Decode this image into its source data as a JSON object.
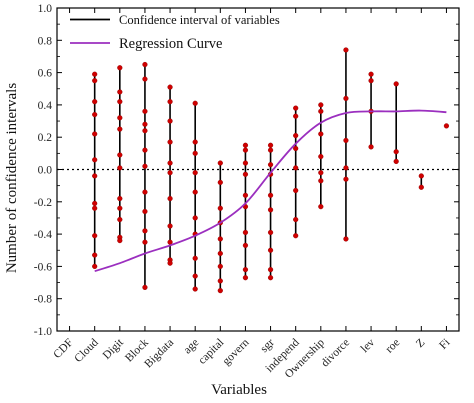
{
  "chart_data": {
    "type": "scatter",
    "title": "",
    "xlabel": "Variables",
    "ylabel": "Number of confidence intervals",
    "ylim": [
      -1.0,
      1.0
    ],
    "yticks": [
      "-1.0",
      "-0.8",
      "-0.6",
      "-0.4",
      "-0.2",
      "0.0",
      "0.2",
      "0.4",
      "0.6",
      "0.8",
      "1.0"
    ],
    "categories": [
      "CDF",
      "Cloud",
      "Digit",
      "Block",
      "Bigdata",
      "age",
      "capital",
      "govern",
      "sgr",
      "independ",
      "Ownership",
      "divorce",
      "lev",
      "roe",
      "Z",
      "Fi"
    ],
    "grid": false,
    "zero_reference_line": "dotted",
    "legend": {
      "placement": "top-left",
      "entries": [
        "Confidence interval of variables",
        "Regression Curve"
      ]
    },
    "series": [
      {
        "name": "Confidence interval of variables",
        "intervals": [
          {
            "category": "CDF",
            "low": null,
            "high": null,
            "points": []
          },
          {
            "category": "Cloud",
            "low": -0.6,
            "high": 0.59,
            "points": [
              0.59,
              0.55,
              0.42,
              0.34,
              0.22,
              0.06,
              -0.04,
              -0.21,
              -0.24,
              -0.41,
              -0.53,
              -0.6
            ]
          },
          {
            "category": "Digit",
            "low": -0.44,
            "high": 0.63,
            "points": [
              0.63,
              0.48,
              0.42,
              0.32,
              0.25,
              0.09,
              0.01,
              -0.18,
              -0.24,
              -0.31,
              -0.42,
              -0.44
            ]
          },
          {
            "category": "Block",
            "low": -0.73,
            "high": 0.65,
            "points": [
              0.65,
              0.56,
              0.36,
              0.28,
              0.24,
              0.12,
              0.02,
              -0.14,
              -0.26,
              -0.38,
              -0.45,
              -0.73
            ]
          },
          {
            "category": "Bigdata",
            "low": -0.58,
            "high": 0.51,
            "points": [
              0.51,
              0.42,
              0.3,
              0.17,
              0.04,
              -0.02,
              -0.18,
              -0.35,
              -0.45,
              -0.56,
              -0.58
            ]
          },
          {
            "category": "age",
            "low": -0.74,
            "high": 0.41,
            "points": [
              0.41,
              0.17,
              0.1,
              -0.02,
              -0.14,
              -0.3,
              -0.4,
              -0.55,
              -0.66,
              -0.74
            ]
          },
          {
            "category": "capital",
            "low": -0.75,
            "high": 0.04,
            "points": [
              0.04,
              -0.08,
              -0.24,
              -0.33,
              -0.43,
              -0.52,
              -0.6,
              -0.69,
              -0.75
            ]
          },
          {
            "category": "govern",
            "low": -0.67,
            "high": 0.15,
            "points": [
              0.15,
              0.12,
              0.04,
              -0.03,
              -0.16,
              -0.23,
              -0.39,
              -0.47,
              -0.62,
              -0.67
            ]
          },
          {
            "category": "sgr",
            "low": -0.67,
            "high": 0.15,
            "points": [
              0.15,
              0.12,
              0.03,
              -0.03,
              -0.16,
              -0.25,
              -0.39,
              -0.5,
              -0.62,
              -0.67
            ]
          },
          {
            "category": "independ",
            "low": -0.41,
            "high": 0.38,
            "points": [
              0.38,
              0.33,
              0.21,
              0.13,
              0.01,
              -0.13,
              -0.31,
              -0.41
            ]
          },
          {
            "category": "Ownership",
            "low": -0.23,
            "high": 0.4,
            "points": [
              0.4,
              0.36,
              0.22,
              0.08,
              -0.02,
              -0.07,
              -0.23
            ]
          },
          {
            "category": "divorce",
            "low": -0.43,
            "high": 0.74,
            "points": [
              0.74,
              0.44,
              0.18,
              0.01,
              -0.06,
              -0.43
            ]
          },
          {
            "category": "lev",
            "low": 0.14,
            "high": 0.59,
            "points": [
              0.59,
              0.55,
              0.36,
              0.14
            ]
          },
          {
            "category": "roe",
            "low": 0.05,
            "high": 0.53,
            "points": [
              0.53,
              0.11,
              0.05
            ]
          },
          {
            "category": "Z",
            "low": -0.11,
            "high": -0.04,
            "points": [
              -0.04,
              -0.11
            ]
          },
          {
            "category": "Fi",
            "low": 0.27,
            "high": 0.27,
            "points": [
              0.27
            ]
          }
        ]
      },
      {
        "name": "Regression Curve",
        "x": [
          1,
          2,
          3,
          4,
          5,
          6,
          7,
          8,
          9,
          10,
          11,
          12,
          13,
          14,
          15
        ],
        "y": [
          -0.63,
          -0.58,
          -0.52,
          -0.47,
          -0.41,
          -0.33,
          -0.21,
          -0.02,
          0.16,
          0.29,
          0.35,
          0.36,
          0.36,
          0.365,
          0.355
        ]
      }
    ],
    "colors": {
      "interval_line": "#000000",
      "point_fill": "#d00000",
      "regression_curve": "#9b2fbf",
      "axis": "#000000"
    }
  }
}
